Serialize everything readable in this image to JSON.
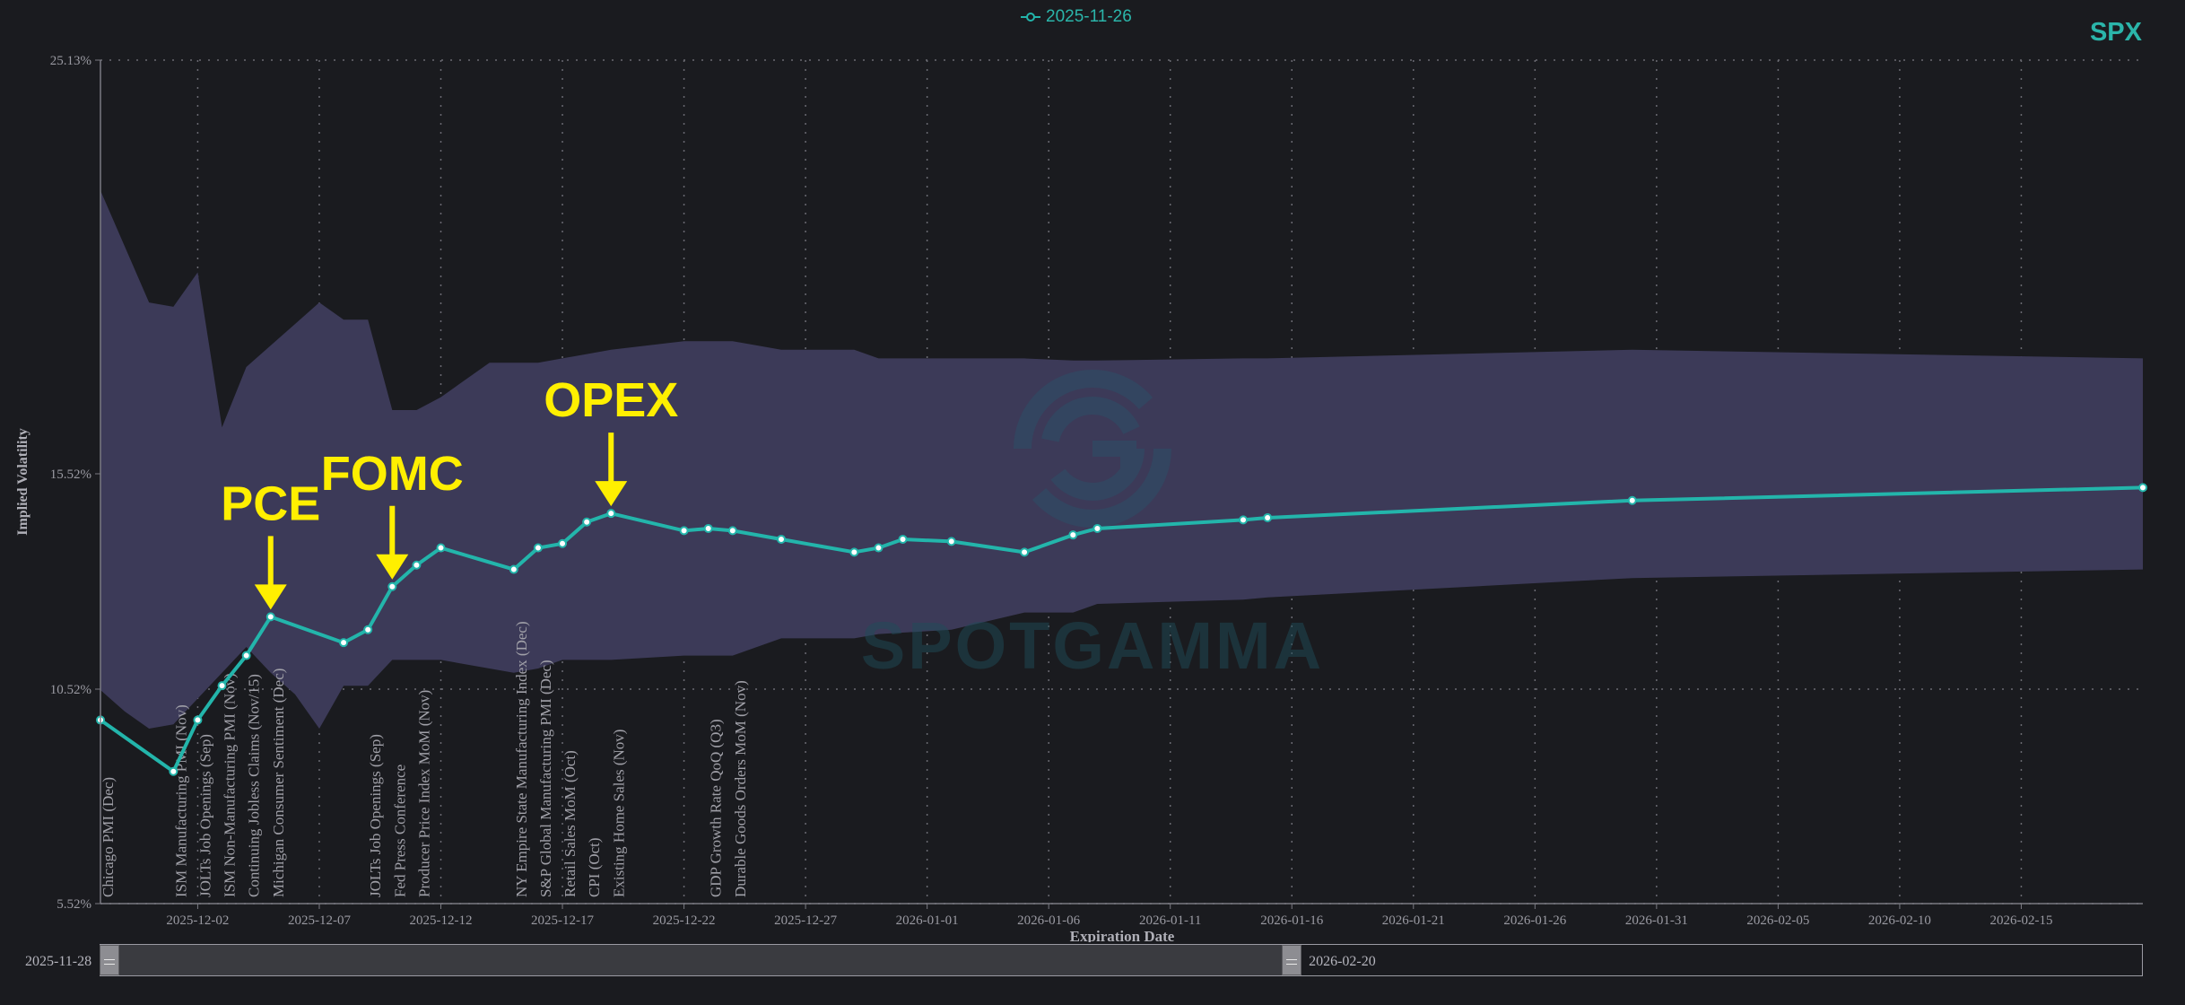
{
  "header": {
    "legend_label": "2025-11-26",
    "symbol": "SPX"
  },
  "watermark": {
    "text": "SPOTGAMMA"
  },
  "range_slider": {
    "start_label": "2025-11-28",
    "end_label": "2026-02-20",
    "selection_end_fraction": 0.583
  },
  "colors": {
    "line": "#23b5ab",
    "band": "#3c3a58",
    "annotation": "#ffef00",
    "background": "#1a1b1f",
    "grid": "#6a6a72",
    "text": "#9a9aa2"
  },
  "chart_data": {
    "type": "line",
    "ylabel": "Implied Volatility",
    "xlabel": "Expiration Date",
    "grid": true,
    "x_range": [
      "2025-11-28",
      "2026-02-20"
    ],
    "ylim": [
      5.52,
      25.13
    ],
    "yticks": [
      "25.13%",
      "15.52%",
      "10.52%",
      "5.52%"
    ],
    "ytick_values": [
      25.13,
      15.52,
      10.52,
      5.52
    ],
    "xticks": [
      "2025-12-02",
      "2025-12-07",
      "2025-12-12",
      "2025-12-17",
      "2025-12-22",
      "2025-12-27",
      "2026-01-01",
      "2026-01-06",
      "2026-01-11",
      "2026-01-16",
      "2026-01-21",
      "2026-01-26",
      "2026-01-31",
      "2026-02-05",
      "2026-02-10",
      "2026-02-15"
    ],
    "series": [
      {
        "name": "2025-11-26",
        "x": [
          "2025-11-28",
          "2025-12-01",
          "2025-12-02",
          "2025-12-03",
          "2025-12-04",
          "2025-12-05",
          "2025-12-08",
          "2025-12-09",
          "2025-12-10",
          "2025-12-11",
          "2025-12-12",
          "2025-12-15",
          "2025-12-16",
          "2025-12-17",
          "2025-12-18",
          "2025-12-19",
          "2025-12-22",
          "2025-12-23",
          "2025-12-24",
          "2025-12-26",
          "2025-12-29",
          "2025-12-30",
          "2025-12-31",
          "2026-01-02",
          "2026-01-05",
          "2026-01-07",
          "2026-01-08",
          "2026-01-14",
          "2026-01-15",
          "2026-01-30",
          "2026-02-20"
        ],
        "values": [
          9.8,
          8.6,
          9.8,
          10.6,
          11.3,
          12.2,
          11.6,
          11.9,
          12.9,
          13.4,
          13.8,
          13.3,
          13.8,
          13.9,
          14.4,
          14.6,
          14.2,
          14.25,
          14.2,
          14.0,
          13.7,
          13.8,
          14.0,
          13.95,
          13.7,
          14.1,
          14.25,
          14.45,
          14.5,
          14.9,
          15.2
        ]
      }
    ],
    "band": {
      "x": [
        "2025-11-28",
        "2025-11-29",
        "2025-11-30",
        "2025-12-01",
        "2025-12-02",
        "2025-12-03",
        "2025-12-04",
        "2025-12-05",
        "2025-12-06",
        "2025-12-07",
        "2025-12-08",
        "2025-12-09",
        "2025-12-10",
        "2025-12-11",
        "2025-12-12",
        "2025-12-13",
        "2025-12-14",
        "2025-12-15",
        "2025-12-16",
        "2025-12-17",
        "2025-12-18",
        "2025-12-19",
        "2025-12-22",
        "2025-12-23",
        "2025-12-24",
        "2025-12-26",
        "2025-12-29",
        "2025-12-30",
        "2026-01-02",
        "2026-01-05",
        "2026-01-07",
        "2026-01-08",
        "2026-01-14",
        "2026-01-15",
        "2026-01-30",
        "2026-02-20"
      ],
      "upper": [
        22.1,
        20.8,
        19.5,
        19.4,
        20.2,
        16.6,
        18.0,
        18.5,
        19.0,
        19.5,
        19.1,
        19.1,
        17.0,
        17.0,
        17.3,
        17.7,
        18.1,
        18.1,
        18.1,
        18.2,
        18.3,
        18.4,
        18.6,
        18.6,
        18.6,
        18.4,
        18.4,
        18.2,
        18.2,
        18.2,
        18.15,
        18.15,
        18.2,
        18.2,
        18.4,
        18.2
      ],
      "lower": [
        10.5,
        10.0,
        9.6,
        9.7,
        10.3,
        10.9,
        11.5,
        10.9,
        10.4,
        9.6,
        10.6,
        10.6,
        11.2,
        11.2,
        11.2,
        11.1,
        11.0,
        10.9,
        11.0,
        11.2,
        11.2,
        11.2,
        11.3,
        11.3,
        11.3,
        11.7,
        11.7,
        11.8,
        11.9,
        12.3,
        12.3,
        12.5,
        12.6,
        12.65,
        13.1,
        13.3
      ]
    },
    "events": [
      {
        "date": "2025-11-28",
        "label": "Chicago PMI (Dec)"
      },
      {
        "date": "2025-12-01",
        "label": "ISM Manufacturing PMI (Nov)"
      },
      {
        "date": "2025-12-02",
        "label": "JOLTs Job Openings (Sep)"
      },
      {
        "date": "2025-12-03",
        "label": "ISM Non-Manufacturing PMI (Nov)"
      },
      {
        "date": "2025-12-04",
        "label": "Continuing Jobless Claims (Nov/15)"
      },
      {
        "date": "2025-12-05",
        "label": "Michigan Consumer Sentiment (Dec)"
      },
      {
        "date": "2025-12-09",
        "label": "JOLTs Job Openings (Sep)"
      },
      {
        "date": "2025-12-10",
        "label": "Fed Press Conference"
      },
      {
        "date": "2025-12-11",
        "label": "Producer Price Index MoM (Nov)"
      },
      {
        "date": "2025-12-15",
        "label": "NY Empire State Manufacturing Index (Dec)"
      },
      {
        "date": "2025-12-16",
        "label": "S&P Global Manufacturing PMI (Dec)"
      },
      {
        "date": "2025-12-17",
        "label": "Retail Sales MoM (Oct)"
      },
      {
        "date": "2025-12-18",
        "label": "CPI (Oct)"
      },
      {
        "date": "2025-12-19",
        "label": "Existing Home Sales (Nov)"
      },
      {
        "date": "2025-12-23",
        "label": "GDP Growth Rate QoQ (Q3)"
      },
      {
        "date": "2025-12-24",
        "label": "Durable Goods Orders MoM (Nov)"
      }
    ],
    "annotations": [
      {
        "label": "PCE",
        "date": "2025-12-05"
      },
      {
        "label": "FOMC",
        "date": "2025-12-10"
      },
      {
        "label": "OPEX",
        "date": "2025-12-19"
      }
    ]
  }
}
